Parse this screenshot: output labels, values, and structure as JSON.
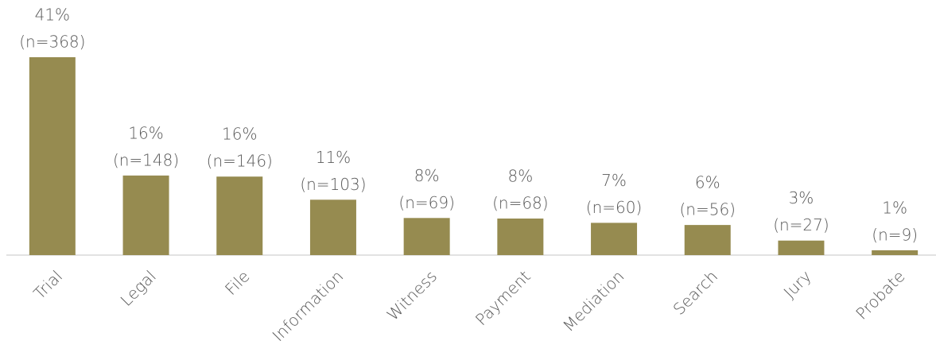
{
  "chart_data": {
    "type": "bar",
    "categories": [
      "Trial",
      "Legal",
      "File",
      "Information",
      "Witness",
      "Payment",
      "Mediation",
      "Search",
      "Jury",
      "Probate"
    ],
    "values": [
      368,
      148,
      146,
      103,
      69,
      68,
      60,
      56,
      27,
      9
    ],
    "value_labels": [
      [
        "41%",
        "(n=368)"
      ],
      [
        "16%",
        "(n=148)"
      ],
      [
        "16%",
        "(n=146)"
      ],
      [
        "11%",
        "(n=103)"
      ],
      [
        "8%",
        "(n=69)"
      ],
      [
        "8%",
        "(n=68)"
      ],
      [
        "7%",
        "(n=60)"
      ],
      [
        "6%",
        "(n=56)"
      ],
      [
        "3%",
        "(n=27)"
      ],
      [
        "1%",
        "(n=9)"
      ]
    ],
    "color": "#968b50"
  }
}
